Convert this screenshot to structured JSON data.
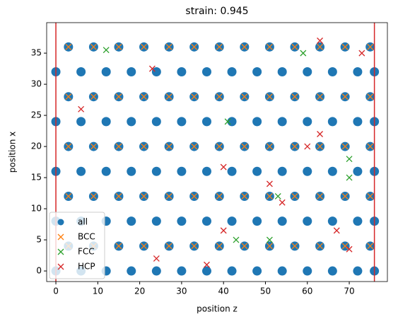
{
  "chart_data": {
    "type": "scatter",
    "title": "strain: 0.945",
    "xlabel": "position z",
    "ylabel": "position x",
    "xlim": [
      -2.2,
      79.1
    ],
    "ylim": [
      -1.7,
      39.9
    ],
    "xticks": [
      0,
      10,
      20,
      30,
      40,
      50,
      60,
      70
    ],
    "yticks": [
      0,
      5,
      10,
      15,
      20,
      25,
      30,
      35
    ],
    "legend": "lower left",
    "vlines": [
      0,
      76
    ],
    "vline_color": "#d62728",
    "series": [
      {
        "name": "all",
        "color": "#1f77b4",
        "marker": "o",
        "x": [
          0,
          6,
          12,
          18,
          24,
          30,
          36,
          42,
          48,
          54,
          60,
          66,
          72,
          76,
          3,
          9,
          15,
          21,
          27,
          33,
          39,
          45,
          51,
          57,
          63,
          69,
          75,
          0,
          6,
          12,
          18,
          24,
          30,
          36,
          42,
          48,
          54,
          60,
          66,
          72,
          76,
          3,
          9,
          15,
          21,
          27,
          33,
          39,
          45,
          51,
          57,
          63,
          69,
          75,
          0,
          6,
          12,
          18,
          24,
          30,
          36,
          42,
          48,
          54,
          60,
          66,
          72,
          76,
          3,
          9,
          15,
          21,
          27,
          33,
          39,
          45,
          51,
          57,
          63,
          69,
          75,
          0,
          6,
          12,
          18,
          24,
          30,
          36,
          42,
          48,
          54,
          60,
          66,
          72,
          76,
          3,
          9,
          15,
          21,
          27,
          33,
          39,
          45,
          51,
          57,
          63,
          69,
          75,
          0,
          6,
          12,
          18,
          24,
          30,
          36,
          42,
          48,
          54,
          60,
          66,
          72,
          76,
          3,
          9,
          15,
          21,
          27,
          33,
          39,
          45,
          51,
          57,
          63,
          69,
          75
        ],
        "y": [
          0,
          0,
          0,
          0,
          0,
          0,
          0,
          0,
          0,
          0,
          0,
          0,
          0,
          0,
          4,
          4,
          4,
          4,
          4,
          4,
          4,
          4,
          4,
          4,
          4,
          4,
          4,
          8,
          8,
          8,
          8,
          8,
          8,
          8,
          8,
          8,
          8,
          8,
          8,
          8,
          8,
          12,
          12,
          12,
          12,
          12,
          12,
          12,
          12,
          12,
          12,
          12,
          12,
          12,
          16,
          16,
          16,
          16,
          16,
          16,
          16,
          16,
          16,
          16,
          16,
          16,
          16,
          16,
          20,
          20,
          20,
          20,
          20,
          20,
          20,
          20,
          20,
          20,
          20,
          20,
          20,
          24,
          24,
          24,
          24,
          24,
          24,
          24,
          24,
          24,
          24,
          24,
          24,
          24,
          24,
          28,
          28,
          28,
          28,
          28,
          28,
          28,
          28,
          28,
          28,
          28,
          28,
          28,
          32,
          32,
          32,
          32,
          32,
          32,
          32,
          32,
          32,
          32,
          32,
          32,
          32,
          32,
          36,
          36,
          36,
          36,
          36,
          36,
          36,
          36,
          36,
          36,
          36,
          36,
          36
        ]
      },
      {
        "name": "BCC",
        "color": "#ff7f0e",
        "marker": "x",
        "x": [
          3,
          9,
          15,
          21,
          27,
          33,
          39,
          45,
          51,
          57,
          63,
          69,
          75,
          3,
          9,
          15,
          21,
          27,
          33,
          39,
          45,
          51,
          57,
          63,
          69,
          75,
          3,
          9,
          15,
          21,
          27,
          33,
          39,
          45,
          51,
          57,
          63,
          69,
          75,
          3,
          9,
          15,
          21,
          27,
          33,
          39,
          45,
          51,
          57,
          63,
          69,
          75,
          3,
          9,
          15,
          21,
          27,
          33,
          39,
          45,
          51,
          57,
          63,
          69,
          75
        ],
        "y": [
          4,
          4,
          4,
          4,
          4,
          4,
          4,
          4,
          4,
          4,
          4,
          4,
          4,
          12,
          12,
          12,
          12,
          12,
          12,
          12,
          12,
          12,
          12,
          12,
          12,
          12,
          20,
          20,
          20,
          20,
          20,
          20,
          20,
          20,
          20,
          20,
          20,
          20,
          20,
          28,
          28,
          28,
          28,
          28,
          28,
          28,
          28,
          28,
          28,
          28,
          28,
          28,
          36,
          36,
          36,
          36,
          36,
          36,
          36,
          36,
          36,
          36,
          36,
          36,
          36
        ]
      },
      {
        "name": "FCC",
        "color": "#2ca02c",
        "marker": "x",
        "x": [
          12,
          59,
          41,
          70,
          70,
          43,
          51,
          53
        ],
        "y": [
          35.5,
          35,
          24,
          18,
          15,
          5,
          5,
          12
        ]
      },
      {
        "name": "HCP",
        "color": "#d62728",
        "marker": "x",
        "x": [
          23,
          63,
          73,
          40,
          51,
          63,
          60,
          40,
          70,
          67,
          54,
          6,
          24,
          36
        ],
        "y": [
          32.5,
          37,
          35,
          16.7,
          14,
          22,
          20,
          6.5,
          3.5,
          6.5,
          11,
          26,
          2,
          1
        ]
      }
    ]
  }
}
